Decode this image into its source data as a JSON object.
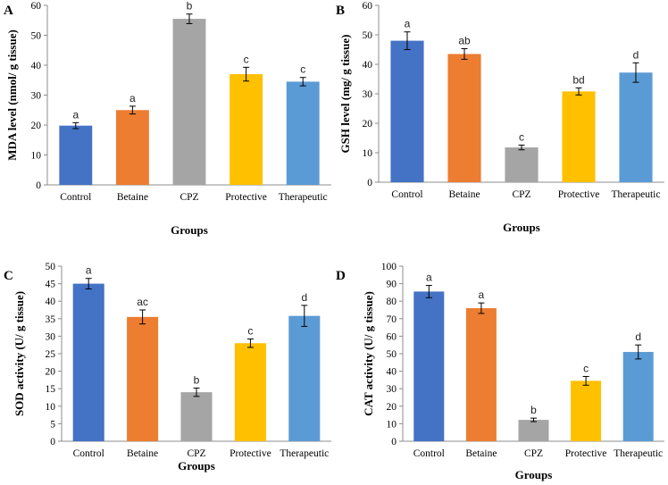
{
  "chart_data": [
    {
      "type": "bar",
      "panel": "A",
      "categories": [
        "Control",
        "Betaine",
        "CPZ",
        "Protective",
        "Therapeutic"
      ],
      "values": [
        19.8,
        25,
        55.5,
        37,
        34.5
      ],
      "errors": [
        1.0,
        1.3,
        1.6,
        2.3,
        1.4
      ],
      "significance": [
        "a",
        "a",
        "b",
        "c",
        "c"
      ],
      "colors": [
        "#4472c4",
        "#ed7d31",
        "#a5a5a5",
        "#ffc000",
        "#5b9bd5"
      ],
      "xlabel": "Groups",
      "ylabel": "MDA level (nmol/ g tissue)",
      "ylim": [
        0,
        60
      ],
      "yticks": [
        0,
        10,
        20,
        30,
        40,
        50,
        60
      ],
      "grid": false
    },
    {
      "type": "bar",
      "panel": "B",
      "categories": [
        "Control",
        "Betaine",
        "CPZ",
        "Protective",
        "Therapeutic"
      ],
      "values": [
        48,
        43.5,
        11.8,
        30.8,
        37.2
      ],
      "errors": [
        3.0,
        1.8,
        0.8,
        1.2,
        3.3
      ],
      "significance": [
        "a",
        "ab",
        "c",
        "bd",
        "d"
      ],
      "colors": [
        "#4472c4",
        "#ed7d31",
        "#a5a5a5",
        "#ffc000",
        "#5b9bd5"
      ],
      "xlabel": "Groups",
      "ylabel": "GSH level (mg/ g tissue)",
      "ylim": [
        0,
        60
      ],
      "yticks": [
        0,
        10,
        20,
        30,
        40,
        50,
        60
      ],
      "grid": false
    },
    {
      "type": "bar",
      "panel": "C",
      "categories": [
        "Control",
        "Betaine",
        "CPZ",
        "Protective",
        "Therapeutic"
      ],
      "values": [
        45,
        35.5,
        14,
        28,
        35.8
      ],
      "errors": [
        1.5,
        2.0,
        1.2,
        1.2,
        3.0
      ],
      "significance": [
        "a",
        "ac",
        "b",
        "c",
        "d"
      ],
      "colors": [
        "#4472c4",
        "#ed7d31",
        "#a5a5a5",
        "#ffc000",
        "#5b9bd5"
      ],
      "xlabel": "Groups",
      "ylabel": "SOD activity (U/ g tissue)",
      "ylim": [
        0,
        50
      ],
      "yticks": [
        0,
        5,
        10,
        15,
        20,
        25,
        30,
        35,
        40,
        45,
        50
      ],
      "grid": false
    },
    {
      "type": "bar",
      "panel": "D",
      "categories": [
        "Control",
        "Betaine",
        "CPZ",
        "Protective",
        "Therapeutic"
      ],
      "values": [
        85.5,
        76,
        12.2,
        34.5,
        51
      ],
      "errors": [
        3.5,
        3.0,
        1.0,
        2.5,
        4.0
      ],
      "significance": [
        "a",
        "a",
        "b",
        "c",
        "d"
      ],
      "colors": [
        "#4472c4",
        "#ed7d31",
        "#a5a5a5",
        "#ffc000",
        "#5b9bd5"
      ],
      "xlabel": "Groups",
      "ylabel": "CAT activity (U/ g tissue)",
      "ylim": [
        0,
        100
      ],
      "yticks": [
        0,
        10,
        20,
        30,
        40,
        50,
        60,
        70,
        80,
        90,
        100
      ],
      "grid": false
    }
  ]
}
